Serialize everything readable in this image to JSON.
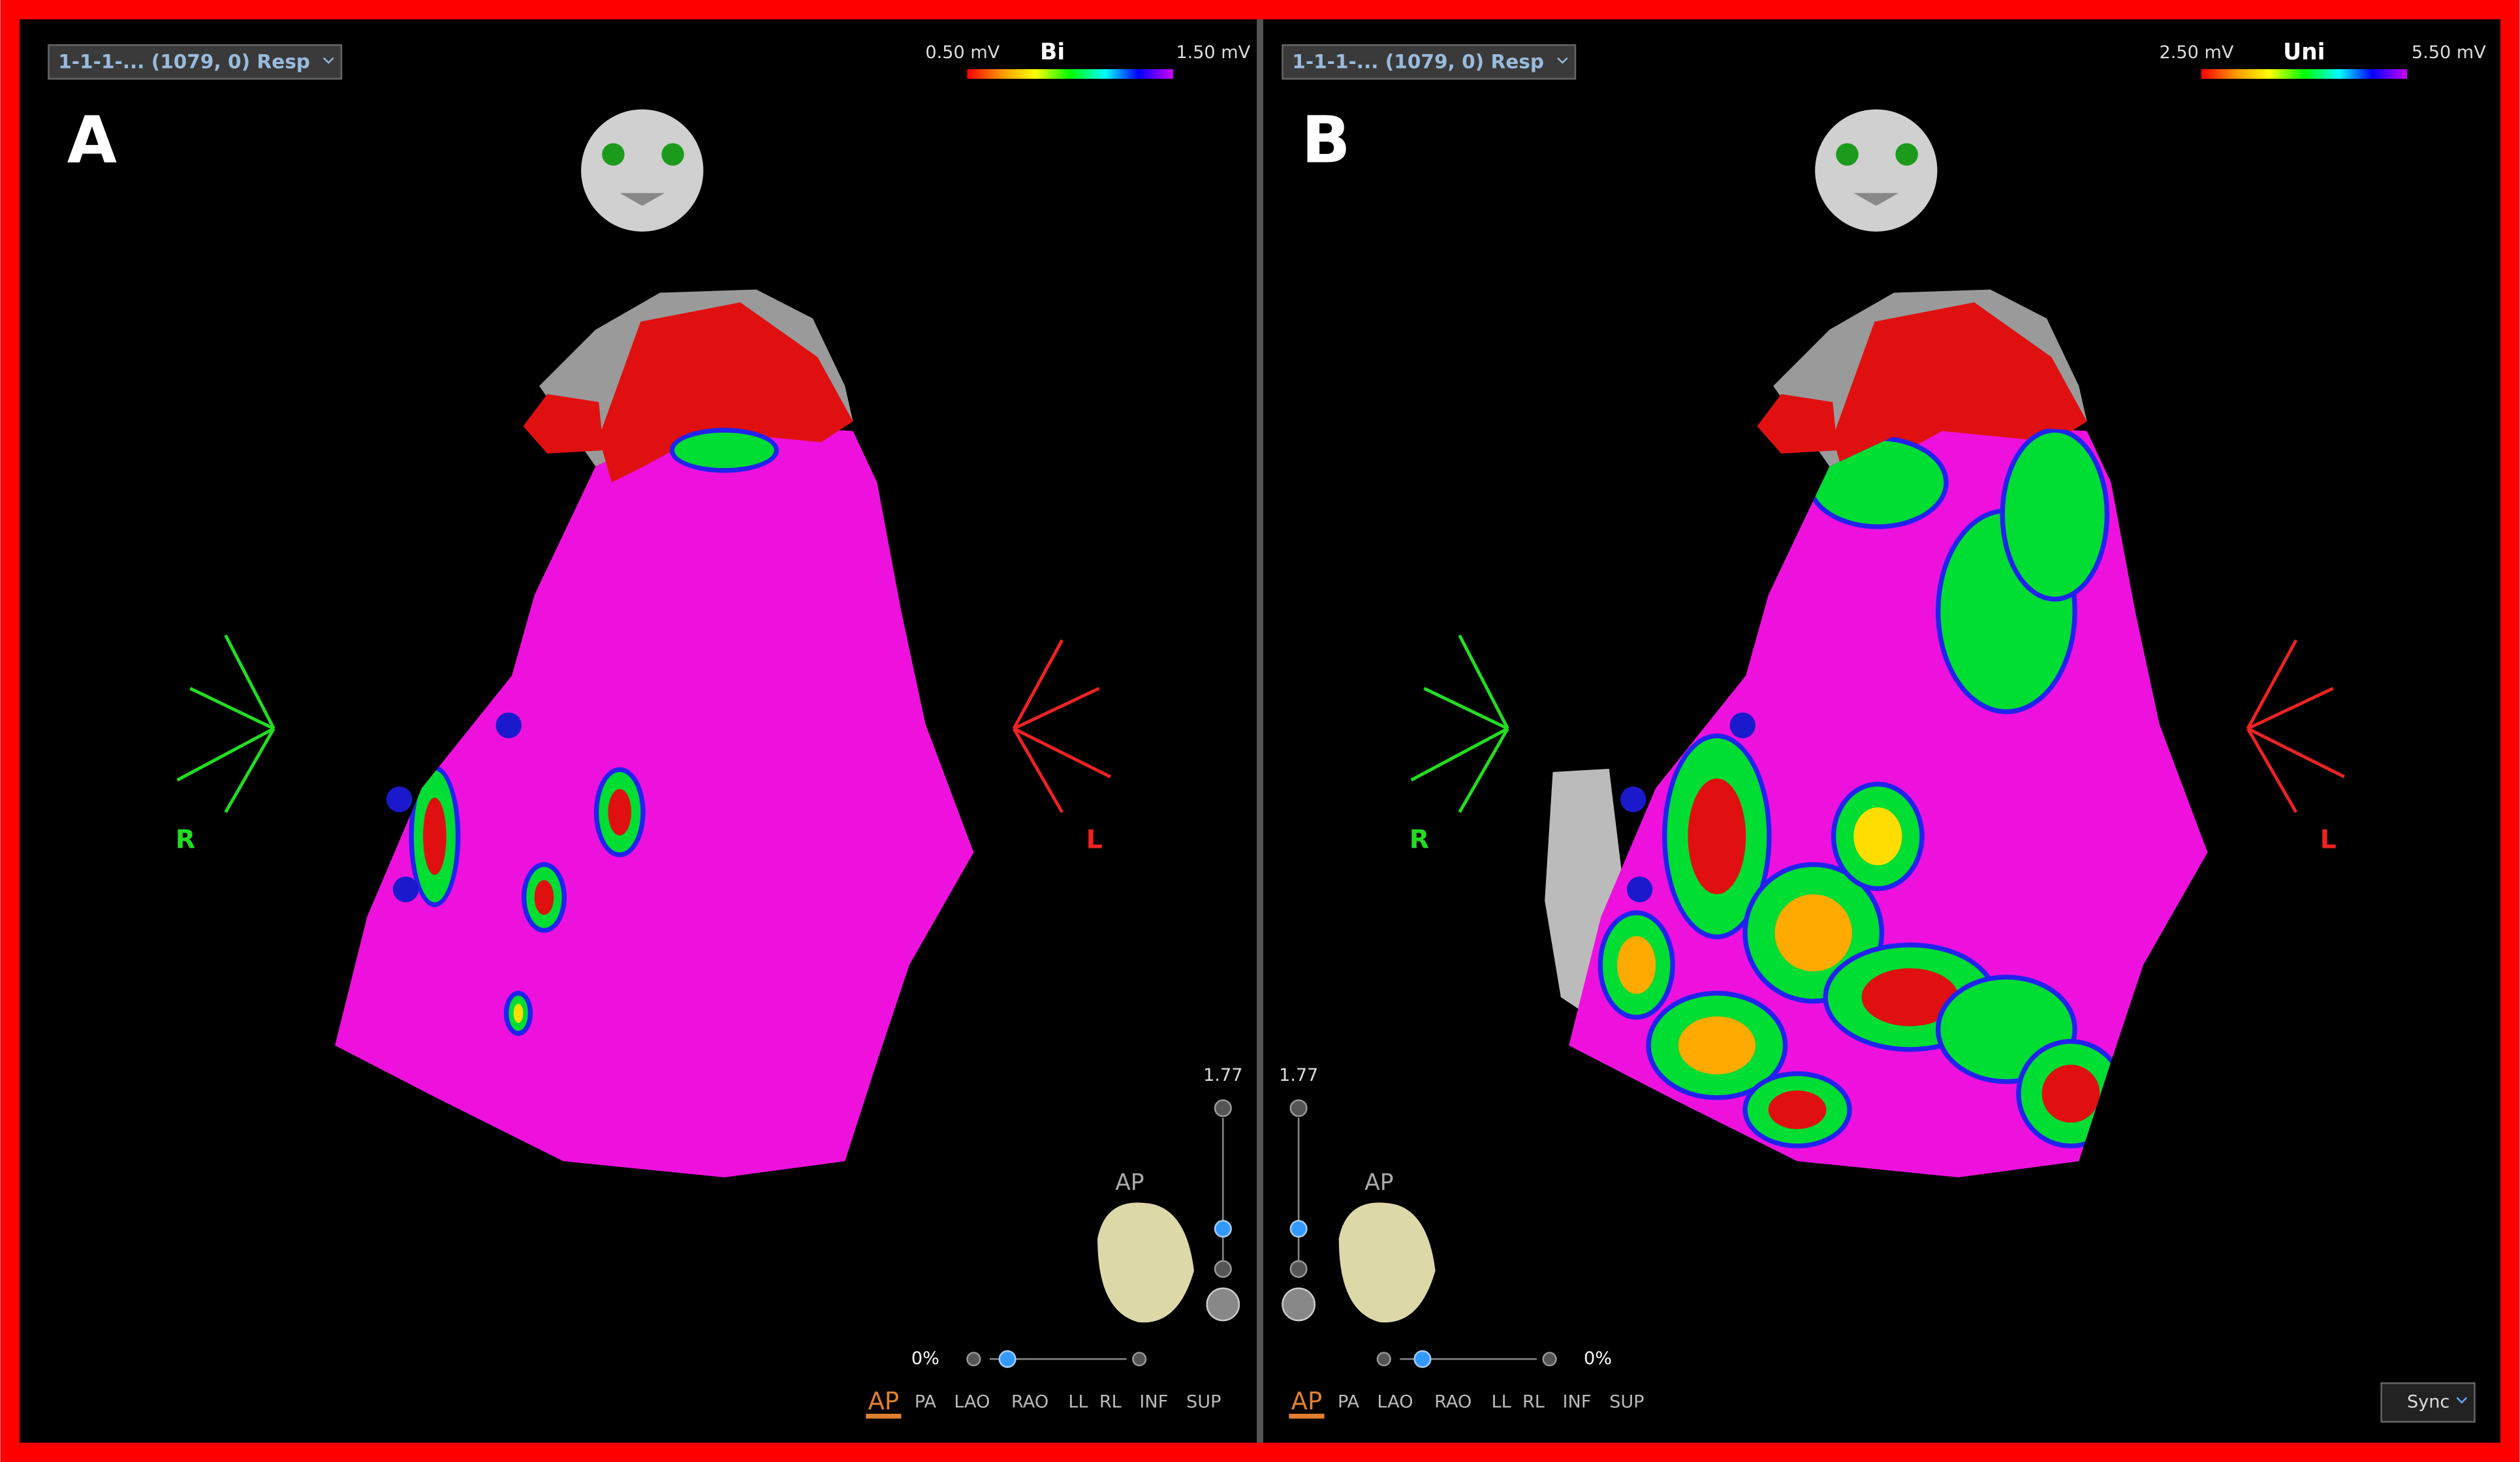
{
  "panels": [
    {
      "label": "A",
      "dropdown": "1-1-1-... (1079, 0) Resp",
      "scale": {
        "min": "0.50 mV",
        "mode": "Bi",
        "max": "1.50 mV"
      },
      "orientation": {
        "right": "R",
        "left": "L"
      },
      "zoom": "1.77",
      "view": "AP",
      "rotation": "0%",
      "views": [
        "AP",
        "PA",
        "LAO",
        "RAO",
        "LL",
        "RL",
        "INF",
        "SUP"
      ]
    },
    {
      "label": "B",
      "dropdown": "1-1-1-... (1079, 0) Resp",
      "scale": {
        "min": "2.50 mV",
        "mode": "Uni",
        "max": "5.50 mV"
      },
      "orientation": {
        "right": "R",
        "left": "L"
      },
      "zoom": "1.77",
      "view": "AP",
      "rotation": "0%",
      "views": [
        "AP",
        "PA",
        "LAO",
        "RAO",
        "LL",
        "RL",
        "INF",
        "SUP"
      ]
    }
  ],
  "sync": "Sync"
}
